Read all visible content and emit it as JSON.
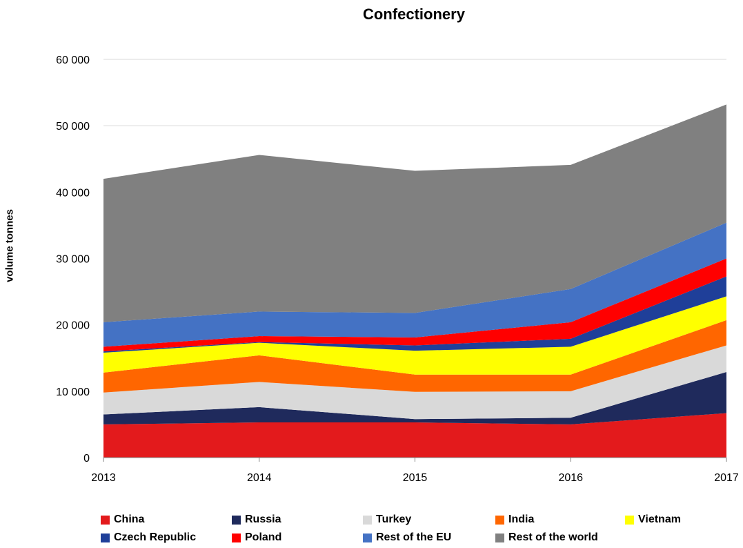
{
  "chart_data": {
    "type": "area",
    "title": "Confectionery",
    "xlabel": "",
    "ylabel": "volume tonnes",
    "stacked": true,
    "categories": [
      "2013",
      "2014",
      "2015",
      "2016",
      "2017"
    ],
    "ylim": [
      0,
      60000
    ],
    "yticks": [
      0,
      10000,
      20000,
      30000,
      40000,
      50000,
      60000
    ],
    "ytick_labels": [
      "0",
      "10 000",
      "20 000",
      "30 000",
      "40 000",
      "50 000",
      "60 000"
    ],
    "grid": true,
    "legend_placement": "bottom",
    "series": [
      {
        "name": "China",
        "color": "#e31a1c",
        "values": [
          5000,
          5300,
          5300,
          5000,
          6700
        ]
      },
      {
        "name": "Russia",
        "color": "#1f2a5c",
        "values": [
          1500,
          2300,
          500,
          1000,
          6200
        ]
      },
      {
        "name": "Turkey",
        "color": "#d9d9d9",
        "values": [
          3300,
          3800,
          4100,
          4000,
          4000
        ]
      },
      {
        "name": "India",
        "color": "#ff6600",
        "values": [
          3000,
          4000,
          2600,
          2500,
          3800
        ]
      },
      {
        "name": "Vietnam",
        "color": "#ffff00",
        "values": [
          3000,
          1900,
          3600,
          4200,
          3600
        ]
      },
      {
        "name": "Czech Republic",
        "color": "#1f3f99",
        "values": [
          200,
          100,
          800,
          1200,
          3000
        ]
      },
      {
        "name": "Poland",
        "color": "#ff0000",
        "values": [
          700,
          900,
          1200,
          2500,
          2700
        ]
      },
      {
        "name": "Rest of the EU",
        "color": "#4472c4",
        "values": [
          3700,
          3700,
          3700,
          5000,
          5400
        ]
      },
      {
        "name": "Rest of the world",
        "color": "#808080",
        "values": [
          21600,
          23600,
          21400,
          18700,
          17800
        ]
      }
    ]
  }
}
